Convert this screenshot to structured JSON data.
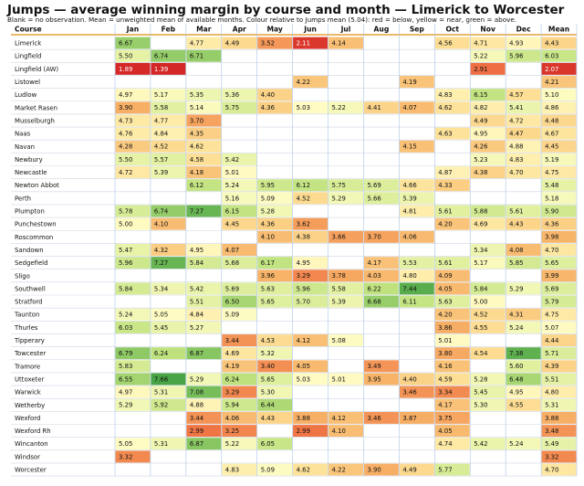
{
  "title": "Jumps — average winning margin by course and month — Limerick to Worcester",
  "subtitle": "Blank = no observation. Mean = unweighted mean of available months. Colour relative to Jumps mean (5.04): red = below, yellow = near, green = above.",
  "chart_data": {
    "type": "heatmap",
    "reference_mean": 5.04,
    "corner_label": "Course",
    "columns": [
      "Jan",
      "Feb",
      "Mar",
      "Apr",
      "May",
      "Jun",
      "Jul",
      "Aug",
      "Sep",
      "Oct",
      "Nov",
      "Dec",
      "Mean"
    ],
    "rows": [
      {
        "course": "Limerick",
        "values": [
          6.67,
          null,
          4.77,
          4.49,
          3.52,
          2.11,
          4.14,
          null,
          null,
          4.56,
          4.71,
          4.93,
          4.43
        ]
      },
      {
        "course": "Lingfield",
        "values": [
          5.5,
          6.74,
          6.71,
          null,
          null,
          null,
          null,
          null,
          null,
          null,
          5.22,
          5.96,
          6.03
        ]
      },
      {
        "course": "Lingfield (AW)",
        "values": [
          1.89,
          1.39,
          null,
          null,
          null,
          null,
          null,
          null,
          null,
          null,
          2.91,
          null,
          2.07
        ]
      },
      {
        "course": "Listowel",
        "values": [
          null,
          null,
          null,
          null,
          null,
          4.22,
          null,
          null,
          4.19,
          null,
          null,
          null,
          4.21
        ]
      },
      {
        "course": "Ludlow",
        "values": [
          4.97,
          5.17,
          5.35,
          5.36,
          4.4,
          null,
          null,
          null,
          null,
          4.83,
          6.15,
          4.57,
          5.1
        ]
      },
      {
        "course": "Market Rasen",
        "values": [
          3.9,
          5.58,
          5.14,
          5.75,
          4.36,
          5.03,
          5.22,
          4.41,
          4.07,
          4.62,
          4.82,
          5.41,
          4.86
        ]
      },
      {
        "course": "Musselburgh",
        "values": [
          4.73,
          4.77,
          3.7,
          null,
          null,
          null,
          null,
          null,
          null,
          null,
          4.49,
          4.72,
          4.48
        ]
      },
      {
        "course": "Naas",
        "values": [
          4.76,
          4.84,
          4.35,
          null,
          null,
          null,
          null,
          null,
          null,
          4.63,
          4.95,
          4.47,
          4.67
        ]
      },
      {
        "course": "Navan",
        "values": [
          4.28,
          4.52,
          4.62,
          null,
          null,
          null,
          null,
          null,
          4.15,
          null,
          4.26,
          4.88,
          4.45
        ]
      },
      {
        "course": "Newbury",
        "values": [
          5.5,
          5.57,
          4.58,
          5.42,
          null,
          null,
          null,
          null,
          null,
          null,
          5.23,
          4.83,
          5.19
        ]
      },
      {
        "course": "Newcastle",
        "values": [
          4.72,
          5.39,
          4.18,
          5.01,
          null,
          null,
          null,
          null,
          null,
          4.87,
          4.38,
          4.7,
          4.75
        ]
      },
      {
        "course": "Newton Abbot",
        "values": [
          null,
          null,
          6.12,
          5.24,
          5.95,
          6.12,
          5.75,
          5.69,
          4.66,
          4.33,
          null,
          null,
          5.48
        ]
      },
      {
        "course": "Perth",
        "values": [
          null,
          null,
          null,
          5.16,
          5.09,
          4.52,
          5.29,
          5.66,
          5.39,
          null,
          null,
          null,
          5.18
        ]
      },
      {
        "course": "Plumpton",
        "values": [
          5.78,
          6.74,
          7.27,
          6.15,
          5.28,
          null,
          null,
          null,
          4.81,
          5.61,
          5.88,
          5.61,
          5.9
        ]
      },
      {
        "course": "Punchestown",
        "values": [
          5.0,
          4.1,
          null,
          4.45,
          4.36,
          3.62,
          null,
          null,
          null,
          4.2,
          4.69,
          4.43,
          4.36
        ]
      },
      {
        "course": "Roscommon",
        "values": [
          null,
          null,
          null,
          null,
          4.1,
          4.38,
          3.66,
          3.7,
          4.06,
          null,
          null,
          null,
          3.98
        ]
      },
      {
        "course": "Sandown",
        "values": [
          5.47,
          4.32,
          4.95,
          4.07,
          null,
          null,
          null,
          null,
          null,
          null,
          5.34,
          4.08,
          4.7
        ]
      },
      {
        "course": "Sedgefield",
        "values": [
          5.96,
          7.27,
          5.84,
          5.68,
          6.17,
          4.95,
          null,
          4.17,
          5.53,
          5.61,
          5.17,
          5.85,
          5.65
        ]
      },
      {
        "course": "Sligo",
        "values": [
          null,
          null,
          null,
          null,
          3.96,
          3.29,
          3.78,
          4.03,
          4.8,
          4.09,
          null,
          null,
          3.99
        ]
      },
      {
        "course": "Southwell",
        "values": [
          5.84,
          5.34,
          5.42,
          5.69,
          5.63,
          5.96,
          5.58,
          6.22,
          7.44,
          4.05,
          5.84,
          5.29,
          5.69
        ]
      },
      {
        "course": "Stratford",
        "values": [
          null,
          null,
          5.51,
          6.5,
          5.65,
          5.7,
          5.39,
          6.68,
          6.11,
          5.63,
          5.0,
          null,
          5.79
        ]
      },
      {
        "course": "Taunton",
        "values": [
          5.24,
          5.05,
          4.84,
          5.09,
          null,
          null,
          null,
          null,
          null,
          4.2,
          4.52,
          4.31,
          4.75
        ]
      },
      {
        "course": "Thurles",
        "values": [
          6.03,
          5.45,
          5.27,
          null,
          null,
          null,
          null,
          null,
          null,
          3.86,
          4.55,
          5.24,
          5.07
        ]
      },
      {
        "course": "Tipperary",
        "values": [
          null,
          null,
          null,
          3.44,
          4.53,
          4.12,
          5.08,
          null,
          null,
          5.01,
          null,
          null,
          4.44
        ]
      },
      {
        "course": "Towcester",
        "values": [
          6.79,
          6.24,
          6.87,
          4.69,
          5.32,
          null,
          null,
          null,
          null,
          3.8,
          4.54,
          7.38,
          5.71
        ]
      },
      {
        "course": "Tramore",
        "values": [
          5.83,
          null,
          null,
          4.19,
          3.4,
          4.05,
          null,
          3.49,
          null,
          4.16,
          null,
          5.6,
          4.39
        ]
      },
      {
        "course": "Uttoxeter",
        "values": [
          6.55,
          7.66,
          5.29,
          6.24,
          5.65,
          5.03,
          5.01,
          3.95,
          4.4,
          4.59,
          5.28,
          6.48,
          5.51
        ]
      },
      {
        "course": "Warwick",
        "values": [
          4.97,
          5.31,
          7.08,
          3.29,
          5.3,
          null,
          null,
          null,
          3.46,
          3.34,
          5.45,
          4.95,
          4.8
        ]
      },
      {
        "course": "Wetherby",
        "values": [
          5.29,
          5.92,
          4.88,
          5.94,
          6.44,
          null,
          null,
          null,
          null,
          4.17,
          5.3,
          4.55,
          5.31
        ]
      },
      {
        "course": "Wexford",
        "values": [
          null,
          null,
          3.44,
          4.06,
          4.43,
          3.88,
          4.12,
          3.46,
          3.87,
          3.75,
          null,
          null,
          3.88
        ]
      },
      {
        "course": "Wexford Rh",
        "values": [
          null,
          null,
          2.99,
          3.25,
          null,
          2.99,
          4.1,
          null,
          null,
          4.05,
          null,
          null,
          3.48
        ]
      },
      {
        "course": "Wincanton",
        "values": [
          5.05,
          5.31,
          6.87,
          5.22,
          6.05,
          null,
          null,
          null,
          null,
          4.74,
          5.42,
          5.24,
          5.49
        ]
      },
      {
        "course": "Windsor",
        "values": [
          3.32,
          null,
          null,
          null,
          null,
          null,
          null,
          null,
          null,
          null,
          null,
          null,
          3.32
        ]
      },
      {
        "course": "Worcester",
        "values": [
          null,
          null,
          null,
          4.83,
          5.09,
          4.62,
          4.22,
          3.9,
          4.49,
          5.77,
          null,
          null,
          4.7
        ]
      }
    ]
  }
}
